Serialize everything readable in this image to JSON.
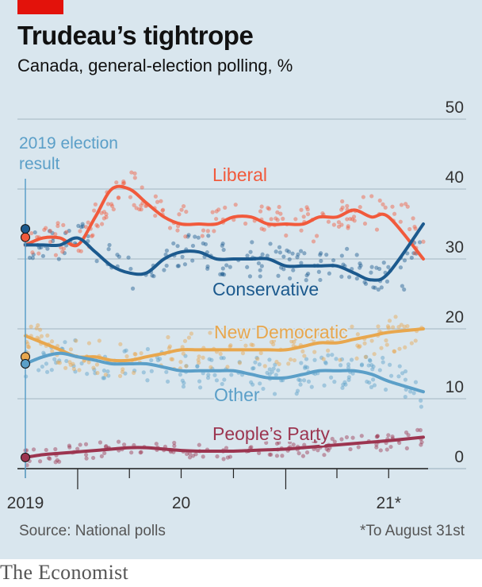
{
  "header": {
    "title": "Trudeau’s tightrope",
    "subtitle": "Canada, general-election polling, %"
  },
  "footer": {
    "source": "Source: National polls",
    "footnote": "*To August 31st",
    "brand": "The Economist"
  },
  "colors": {
    "background": "#d9e6ee",
    "accent_red": "#e3120b",
    "liberal": "#f15a3c",
    "conservative": "#1c5a8e",
    "new_democratic": "#e8a74e",
    "other": "#5b9fc8",
    "peoples_party": "#9c3550"
  },
  "chart_data": {
    "type": "line",
    "title": "Trudeau’s tightrope",
    "subtitle": "Canada, general-election polling, %",
    "ylim": [
      0,
      50
    ],
    "yticks": [
      0,
      10,
      20,
      30,
      40,
      50
    ],
    "ytick_labels": [
      "0",
      "10",
      "20",
      "30",
      "40",
      "50"
    ],
    "xlim": [
      "2019-10-01",
      "2021-08-31"
    ],
    "xtick_labels": [
      {
        "date": "2019-10-01",
        "label": "2019"
      },
      {
        "date": "2020-07-01",
        "label": "20"
      },
      {
        "date": "2021-07-01",
        "label": "21*"
      }
    ],
    "annotation": {
      "date": "2019-10-21",
      "label": "2019 election result"
    },
    "x": [
      "2019-10",
      "2019-11",
      "2019-12",
      "2020-01",
      "2020-02",
      "2020-03",
      "2020-04",
      "2020-05",
      "2020-06",
      "2020-07",
      "2020-08",
      "2020-09",
      "2020-10",
      "2020-11",
      "2020-12",
      "2021-01",
      "2021-02",
      "2021-03",
      "2021-04",
      "2021-05",
      "2021-06",
      "2021-07",
      "2021-08"
    ],
    "series": [
      {
        "name": "Liberal",
        "election_result": 33.1,
        "values": [
          32,
          33,
          33,
          32,
          36,
          40,
          40,
          38,
          36,
          35,
          35,
          35,
          36,
          36,
          35,
          35,
          35,
          36,
          36,
          37,
          36,
          36,
          30
        ]
      },
      {
        "name": "Conservative",
        "election_result": 34.3,
        "values": [
          32,
          32,
          32,
          33,
          31,
          29,
          28,
          28,
          30,
          31,
          31,
          30,
          30,
          30,
          30,
          29,
          29,
          29,
          29,
          28,
          27,
          28,
          35
        ]
      },
      {
        "name": "New Democratic",
        "election_result": 16,
        "values": [
          19,
          18,
          17,
          16,
          16,
          15.5,
          15.5,
          16,
          16.5,
          17,
          17,
          17,
          17,
          17,
          17,
          17,
          17.5,
          18,
          18,
          18.5,
          19,
          19.5,
          20
        ]
      },
      {
        "name": "Other",
        "election_result": 15,
        "values": [
          15,
          16,
          16.5,
          16,
          15.5,
          15,
          15,
          15,
          14.5,
          14,
          14,
          14,
          14,
          13.5,
          13,
          13,
          13.5,
          14,
          14,
          14,
          13.5,
          12.5,
          11
        ]
      },
      {
        "name": "People’s Party",
        "election_result": 1.6,
        "values": [
          1.6,
          2,
          2.2,
          2.4,
          2.6,
          2.8,
          3,
          3,
          2.8,
          2.6,
          2.5,
          2.5,
          2.5,
          2.6,
          2.7,
          2.8,
          3,
          3.2,
          3.4,
          3.6,
          3.8,
          4,
          4.5
        ]
      }
    ]
  }
}
